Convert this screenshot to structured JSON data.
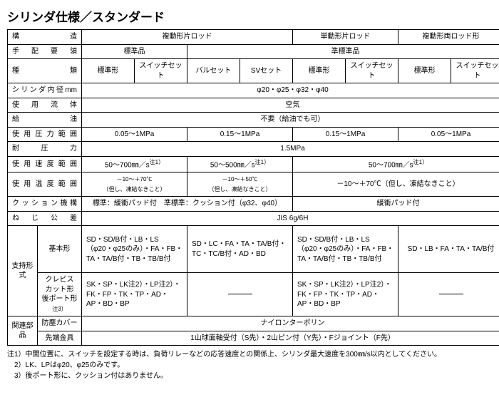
{
  "title": "シリンダ仕様／スタンダード",
  "headers": {
    "structure": "構　　　　　造",
    "col1": "複動形片ロッド",
    "col2": "単動形片ロッド",
    "col3": "複動形両ロッド形"
  },
  "rows": {
    "arrangement": {
      "label": "手 配 要 領",
      "v1": "標準品",
      "v2": "準標準品"
    },
    "type": {
      "label": "種　　　　　類",
      "t1": "標準形",
      "t2": "スイッチセット",
      "t3": "バルセット",
      "t4": "SVセット",
      "t5": "標準形",
      "t6": "スイッチセット",
      "t7": "標準形",
      "t8": "スイッチセット"
    },
    "bore": {
      "label": "シリンダ内径mm",
      "val": "φ20・φ25・φ32・φ40"
    },
    "fluid": {
      "label": "使 用 流 体",
      "val": "空気"
    },
    "lub": {
      "label": "給　　　　　油",
      "val": "不要（給油でも可）"
    },
    "pressure": {
      "label": "使 用 圧 力 範 囲",
      "v1": "0.05～1MPa",
      "v2": "0.15～1MPa",
      "v3": "0.15～1MPa",
      "v4": "0.05～1MPa"
    },
    "proof": {
      "label": "耐　　圧　　力",
      "val": "1.5MPa"
    },
    "speed": {
      "label": "使 用 速 度 範 囲",
      "v1": "50～700㎜／s",
      "v2": "50～500㎜／s",
      "v3": "50～700㎜／s",
      "note": "注1）"
    },
    "temp": {
      "label": "使 用 温 度 範 囲",
      "v1a": "－10～＋70℃",
      "v1b": "（但し、凍結なきこと）",
      "v2a": "－10～＋50℃",
      "v2b": "（但し、凍結なきこと）",
      "v3": "－10～＋70℃（但し、凍結なきこと）"
    },
    "cushion": {
      "label": "クッション機構",
      "v1": "標準：緩衝パッド付　準標準：クッション付（φ32、φ40）",
      "v2": "緩衝パッド付"
    },
    "thread": {
      "label": "ね じ 公 差",
      "val": "JIS 6g/6H"
    },
    "support": {
      "label": "支持形式",
      "basic": {
        "label": "基本形",
        "v1": "SD・SD/B付・LB・LS（φ20・φ25のみ）・FA・FB・TA・TA/B付・TB・TB/B付",
        "v2": "SD・LC・FA・TA・TA/B付・TC・TC/B付・AD・BD",
        "v3": "SD・SD/B付・LB・LS（φ20・φ25のみ）・FA・FB・TA・TA/B付・TB・TB/B付",
        "v4": "SD・LB・FA・TA・TA/B付"
      },
      "clevis": {
        "label_l1": "クレビス",
        "label_l2": "カット形",
        "label_l3": "後ポート形",
        "label_note": "注3）",
        "v1": "SK・SP・LK注2）・LP注2）・FK・FP・TK・TP・AD・AP・BD・BP",
        "v3": "SK・SP・LK注2）・LP注2）・FK・FP・TK・TP・AD・AP・BD・BP"
      }
    },
    "related": {
      "label": "関連部品",
      "dust": {
        "label": "防塵カバー",
        "val": "ナイロンターポリン"
      },
      "tip": {
        "label": "先端金具",
        "val": "1山球面軸受付（S先）・2山ピン付（Y先）・Fジョイント（F先）"
      }
    }
  },
  "notes": {
    "n1": "注1）中間位置に、スイッチを設定する時は、負荷リレーなどの応答速度との関係上、シリンダ最大速度を300㎜/s以内としてください。",
    "n2": "　2）LK、LPはφ20、φ25のみです。",
    "n3": "　3）後ポート形に、クッション付はありません。"
  }
}
